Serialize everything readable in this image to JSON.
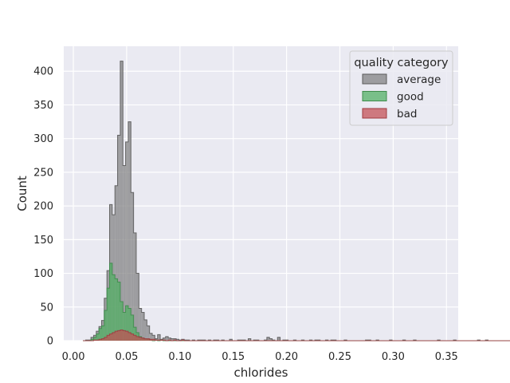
{
  "chart_data": {
    "type": "histogram",
    "title": "",
    "xlabel": "chlorides",
    "ylabel": "Count",
    "xlim": [
      -0.009,
      0.361
    ],
    "ylim": [
      0,
      437
    ],
    "xticks": [
      0.0,
      0.05,
      0.1,
      0.15,
      0.2,
      0.25,
      0.3,
      0.35
    ],
    "xtick_labels": [
      "0.00",
      "0.05",
      "0.10",
      "0.15",
      "0.20",
      "0.25",
      "0.30",
      "0.35"
    ],
    "yticks": [
      0,
      50,
      100,
      150,
      200,
      250,
      300,
      350,
      400
    ],
    "ytick_labels": [
      "0",
      "50",
      "100",
      "150",
      "200",
      "250",
      "300",
      "350",
      "400"
    ],
    "grid": true,
    "legend": {
      "title": "quality category",
      "placement": "top-right",
      "entries": [
        "average",
        "good",
        "bad"
      ]
    },
    "bin_start": 0.009,
    "bin_width": 0.0025,
    "series": [
      {
        "name": "average",
        "color": "#7f7f7f",
        "edge": "#5a5a5a",
        "counts": [
          0,
          1,
          1,
          5,
          8,
          14,
          21,
          30,
          63,
          104,
          202,
          187,
          230,
          305,
          415,
          260,
          295,
          325,
          220,
          160,
          100,
          48,
          42,
          31,
          22,
          11,
          8,
          3,
          9,
          2,
          4,
          6,
          4,
          3,
          3,
          2,
          1,
          2,
          1,
          1,
          0,
          1,
          0,
          1,
          1,
          1,
          0,
          1,
          0,
          1,
          1,
          0,
          1,
          0,
          0,
          2,
          0,
          0,
          1,
          1,
          1,
          0,
          3,
          0,
          1,
          1,
          0,
          0,
          1,
          5,
          3,
          1,
          0,
          5,
          0,
          1,
          1,
          0,
          0,
          1,
          0,
          0,
          1,
          0,
          0,
          1,
          0,
          1,
          1,
          0,
          0,
          1,
          0,
          1,
          1,
          0,
          0,
          0,
          1,
          0,
          0,
          0,
          0,
          0,
          0,
          0,
          1,
          1,
          0,
          0,
          1,
          0,
          0,
          0,
          0,
          1,
          0,
          0,
          0,
          0,
          1,
          0,
          0,
          0,
          1,
          0,
          0,
          0,
          0,
          0,
          0,
          0,
          0,
          1,
          0,
          0,
          0,
          0,
          0,
          1,
          0,
          0,
          0,
          0,
          0,
          0,
          0,
          0,
          1,
          0,
          0,
          1,
          0,
          0,
          0,
          0,
          0,
          0,
          0,
          0,
          0,
          0,
          0,
          0,
          0,
          0,
          0,
          1,
          0,
          0,
          0,
          0,
          0,
          0,
          0,
          0,
          0,
          0,
          0,
          0,
          0,
          0,
          0,
          0,
          0,
          0,
          0,
          0,
          0,
          0,
          0,
          0,
          0,
          0,
          0,
          0,
          0,
          0,
          0,
          0,
          0,
          0,
          0,
          0,
          0,
          0,
          0,
          0,
          0,
          0,
          0,
          0,
          0,
          0,
          0,
          0,
          0,
          1,
          0,
          0,
          0,
          0,
          1
        ]
      },
      {
        "name": "good",
        "color": "#4daf5f",
        "edge": "#3f8c4c",
        "counts": [
          0,
          0,
          0,
          2,
          5,
          10,
          18,
          22,
          45,
          78,
          115,
          98,
          92,
          87,
          58,
          42,
          52,
          48,
          38,
          20,
          12,
          6,
          4,
          3,
          2,
          1,
          0,
          1,
          0,
          1,
          0,
          0,
          0,
          0,
          0,
          0,
          0,
          0,
          0,
          0,
          0,
          0,
          0,
          0,
          0,
          0,
          0,
          0,
          0,
          0,
          0,
          0,
          0,
          0,
          0,
          0,
          0,
          0,
          0,
          0,
          0,
          0,
          0,
          0,
          0,
          0,
          0,
          0,
          0,
          0,
          0,
          0,
          0,
          0,
          0,
          0,
          0,
          0,
          0,
          0,
          0,
          0,
          0,
          0,
          0,
          0,
          0,
          0,
          0,
          0,
          0,
          0,
          0,
          0,
          0,
          0,
          0,
          0,
          0,
          0,
          0,
          0,
          0,
          0,
          0,
          0,
          0,
          0,
          0,
          0,
          0,
          0,
          0,
          0,
          0,
          0,
          0,
          0,
          0,
          0,
          0,
          0,
          0,
          0,
          0,
          0,
          0,
          0,
          0,
          0,
          0,
          0,
          0,
          0,
          0,
          0,
          0,
          0,
          0,
          0,
          0,
          0,
          0,
          0,
          0,
          0,
          0,
          0,
          0,
          0,
          0,
          0,
          0,
          0,
          0,
          0,
          0,
          0,
          0,
          0,
          0,
          0,
          0,
          0,
          0,
          0,
          0,
          0,
          0,
          0,
          0,
          0,
          0,
          0,
          0,
          0,
          0,
          0,
          0,
          0,
          0,
          0,
          0,
          0,
          0,
          0,
          0,
          0,
          0,
          0,
          0,
          0,
          0,
          0,
          0,
          0,
          0,
          0,
          0,
          0,
          0,
          0,
          0,
          0,
          0,
          0,
          0,
          0,
          0,
          0,
          0,
          0,
          0,
          0,
          0,
          0,
          0,
          0,
          0,
          0,
          0,
          0,
          0,
          0,
          0,
          0,
          0,
          0,
          0,
          0,
          0,
          0,
          0,
          0,
          0,
          0,
          0,
          0,
          0,
          0,
          0,
          0,
          0,
          0,
          0,
          0,
          0,
          0,
          0,
          0,
          0,
          0,
          0,
          0,
          0,
          0,
          0,
          0,
          0,
          0,
          0,
          0,
          0,
          0,
          0
        ]
      },
      {
        "name": "bad",
        "color": "#c44e52",
        "edge": "#a03c40",
        "counts": [
          0,
          0,
          0,
          0,
          1,
          1,
          2,
          3,
          5,
          8,
          10,
          12,
          14,
          15,
          16,
          15,
          14,
          12,
          10,
          8,
          6,
          5,
          4,
          3,
          3,
          2,
          2,
          1,
          1,
          1,
          1,
          0,
          1,
          0,
          1,
          0,
          0,
          1,
          0,
          0,
          0,
          0,
          0,
          0,
          0,
          0,
          0,
          0,
          0,
          0,
          0,
          0,
          0,
          0,
          0,
          0,
          0,
          0,
          0,
          0,
          0,
          0,
          0,
          0,
          0,
          0,
          0,
          0,
          0,
          0,
          0,
          0,
          0,
          0,
          0,
          0,
          0,
          0,
          0,
          0,
          0,
          0,
          0,
          0,
          0,
          0,
          0,
          0,
          0,
          0,
          0,
          0,
          0,
          0,
          0,
          0,
          0,
          0,
          0,
          0,
          0,
          0,
          0,
          0,
          0,
          0,
          0,
          0,
          0,
          0,
          0,
          0,
          0,
          0,
          0,
          0,
          0,
          0,
          0,
          0,
          0,
          0,
          0,
          0,
          0,
          0,
          0,
          0,
          0,
          0,
          0,
          0,
          0,
          0,
          0,
          0,
          0,
          0,
          0,
          0,
          0,
          0,
          0,
          0,
          0,
          0,
          0,
          0,
          0,
          0,
          0,
          0,
          0,
          0,
          0,
          0,
          0,
          0,
          0,
          0,
          0,
          0,
          0,
          0,
          0,
          0,
          0,
          0,
          0,
          0,
          0,
          0,
          0,
          0,
          0,
          0,
          0,
          0,
          0,
          0,
          0,
          0,
          0,
          0,
          0,
          0,
          0,
          0,
          0,
          0,
          0,
          0,
          0,
          0,
          0,
          0,
          0,
          0,
          0,
          0,
          0,
          0,
          0,
          0,
          0,
          0,
          0,
          0,
          0,
          0,
          0,
          0,
          0,
          0,
          0,
          0,
          0,
          0,
          0,
          0,
          0,
          0,
          0,
          0,
          0,
          0,
          0,
          0,
          0,
          0,
          0,
          0,
          0,
          0,
          0,
          0,
          0,
          0,
          0,
          0,
          0,
          0,
          0,
          0,
          0,
          0,
          0,
          0,
          0,
          0,
          0,
          0,
          0,
          0,
          0,
          0,
          0,
          0,
          0,
          0,
          0,
          0,
          0
        ]
      }
    ]
  }
}
